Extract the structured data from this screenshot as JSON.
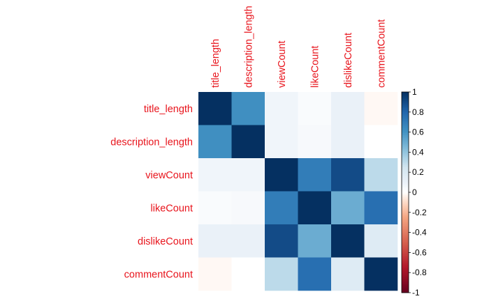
{
  "chart_data": {
    "type": "heatmap",
    "variables": [
      "title_length",
      "description_length",
      "viewCount",
      "likeCount",
      "dislikeCount",
      "commentCount"
    ],
    "matrix": [
      [
        1.0,
        0.62,
        0.07,
        0.03,
        0.1,
        -0.02
      ],
      [
        0.62,
        1.0,
        0.07,
        0.04,
        0.1,
        0.0
      ],
      [
        0.07,
        0.07,
        1.0,
        0.7,
        0.9,
        0.3
      ],
      [
        0.03,
        0.04,
        0.7,
        1.0,
        0.5,
        0.76
      ],
      [
        0.1,
        0.1,
        0.9,
        0.5,
        1.0,
        0.17
      ],
      [
        -0.02,
        0.0,
        0.3,
        0.76,
        0.17,
        1.0
      ]
    ],
    "colorbar": {
      "range": [
        -1,
        1
      ],
      "ticks": [
        "1",
        "0.8",
        "0.6",
        "0.4",
        "0.2",
        "0",
        "-0.2",
        "-0.4",
        "-0.6",
        "-0.8",
        "-1"
      ],
      "tick_values": [
        1,
        0.8,
        0.6,
        0.4,
        0.2,
        0,
        -0.2,
        -0.4,
        -0.6,
        -0.8,
        -1
      ]
    },
    "colors": {
      "positive": "#053061",
      "mid": "#ffffff",
      "negative": "#67001f",
      "label": "#e8141c"
    },
    "title": "",
    "xlabel": "",
    "ylabel": "",
    "legend_position": "right"
  }
}
